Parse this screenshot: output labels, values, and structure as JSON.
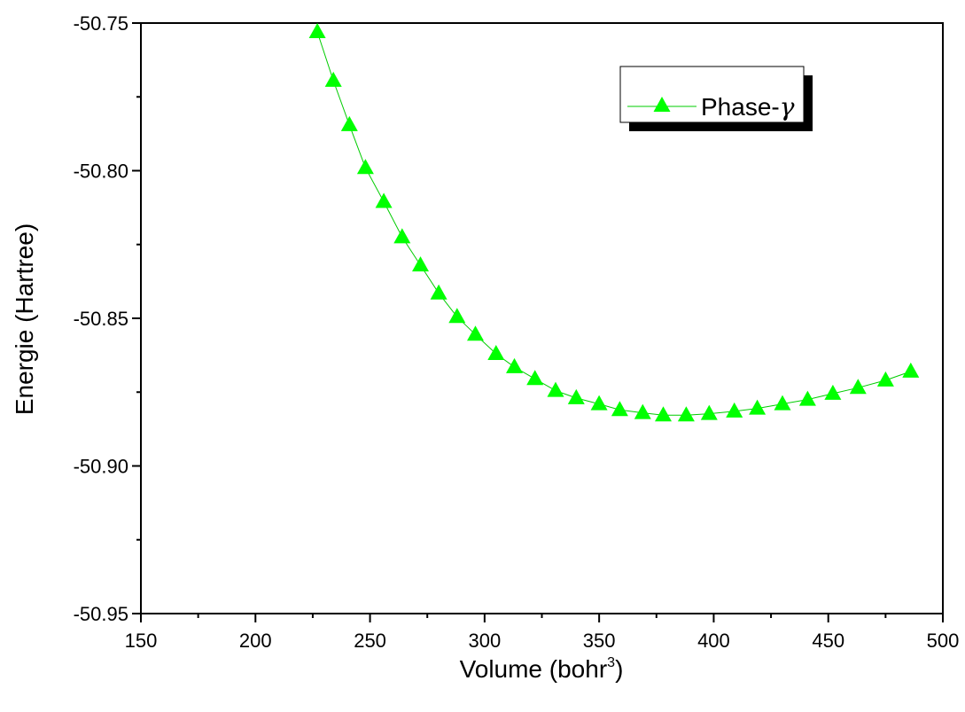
{
  "chart_data": {
    "type": "line",
    "title": "",
    "xlabel": "Volume (bohr",
    "xlabel_sup": "3",
    "xlabel_close": ")",
    "ylabel": "Energie (Hartree)",
    "xlim": [
      150,
      500
    ],
    "ylim": [
      -50.95,
      -50.75
    ],
    "x_ticks": [
      "150",
      "200",
      "250",
      "300",
      "350",
      "400",
      "450",
      "500"
    ],
    "y_ticks": [
      "-50.75",
      "-50.80",
      "-50.85",
      "-50.90",
      "-50.95"
    ],
    "grid": false,
    "legend_position": "top-right",
    "series": [
      {
        "name": "Phase-",
        "name_suffix": "γ",
        "color": "#00ff00",
        "marker": "triangle",
        "x": [
          227,
          234,
          241,
          248,
          256,
          264,
          272,
          280,
          288,
          296,
          305,
          313,
          322,
          331,
          340,
          350,
          359,
          369,
          378,
          388,
          398,
          409,
          419,
          430,
          441,
          452,
          463,
          475,
          486
        ],
        "y": [
          -50.753,
          -50.7695,
          -50.7845,
          -50.799,
          -50.8105,
          -50.8225,
          -50.832,
          -50.8415,
          -50.8495,
          -50.8555,
          -50.862,
          -50.8665,
          -50.8705,
          -50.8745,
          -50.877,
          -50.879,
          -50.881,
          -50.882,
          -50.8828,
          -50.8828,
          -50.8823,
          -50.8815,
          -50.8805,
          -50.879,
          -50.8775,
          -50.8755,
          -50.8735,
          -50.871,
          -50.868
        ]
      }
    ]
  }
}
